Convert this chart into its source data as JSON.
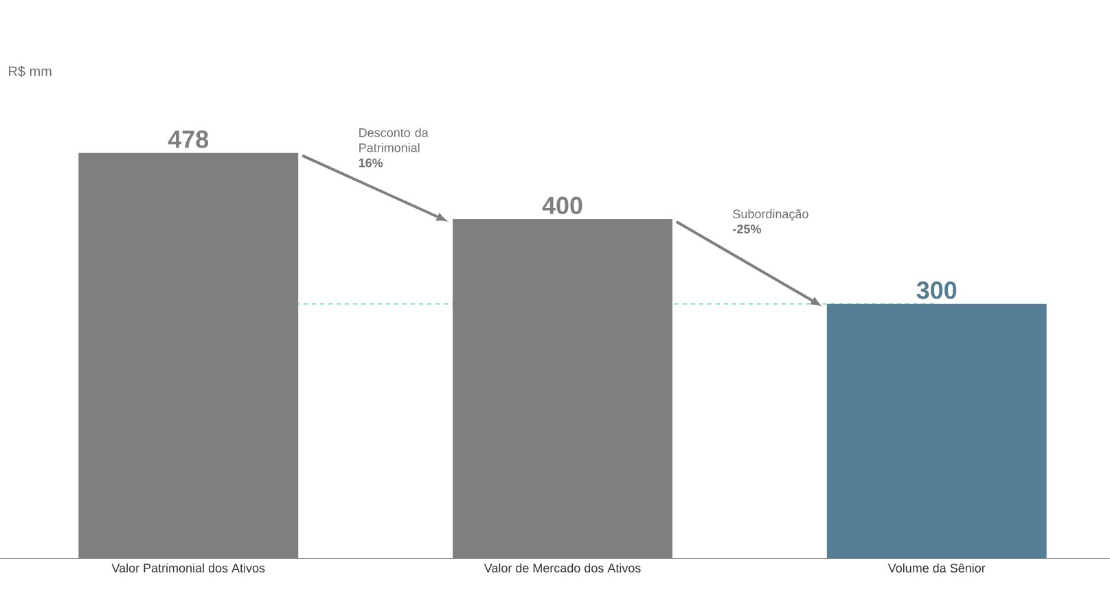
{
  "chart_data": {
    "type": "bar",
    "subtitle": "R$ mm",
    "categories": [
      "Valor Patrimonial dos Ativos",
      "Valor de Mercado dos Ativos",
      "Volume da Sênior"
    ],
    "values": [
      478,
      400,
      300
    ],
    "colors": [
      "#7f7f7f",
      "#7f7f7f",
      "#557d93"
    ],
    "data_labels": true,
    "annotations": [
      "Desconto da Patrimonial **16%**",
      "Subordinação **-25%**"
    ],
    "ref_lines": [
      {
        "axis": "y",
        "value": 300,
        "color": "#6fd0b8",
        "line_style": "dashed"
      }
    ]
  }
}
